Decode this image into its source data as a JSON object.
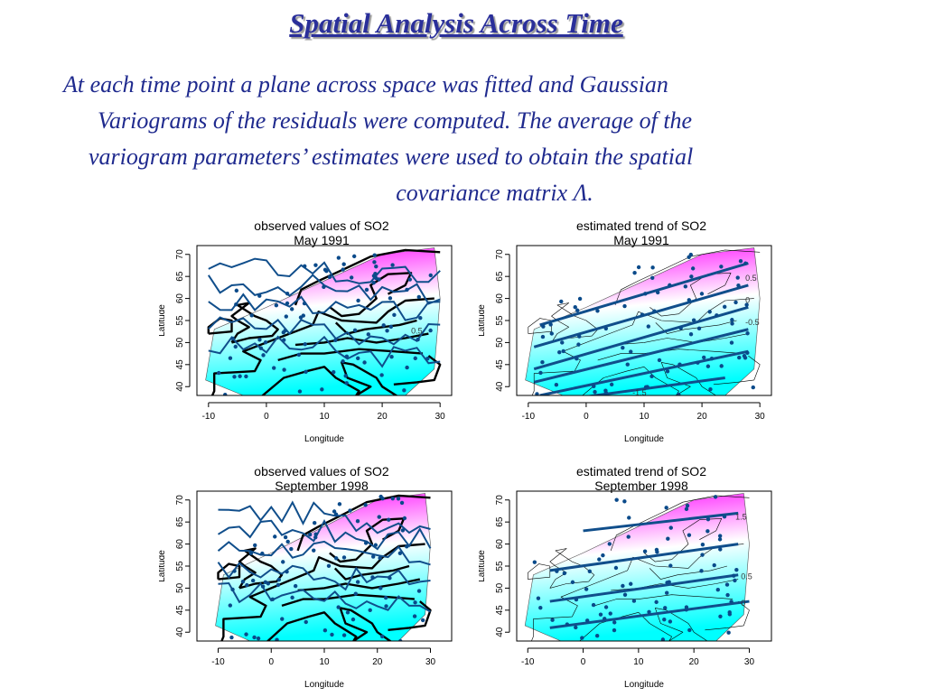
{
  "slide": {
    "title": "Spatial Analysis Across Time",
    "text_lines": [
      "At each time point a plane across space was fitted and Gaussian",
      "Variograms of the residuals were computed. The average of the",
      "variogram parameters’ estimates were used to obtain the spatial",
      "covariance matrix Λ."
    ]
  },
  "colors": {
    "high": "#ff00ff",
    "low": "#00ffff",
    "contour": "#104e8b",
    "station": "#0a4a8a"
  },
  "chart_data": [
    {
      "type": "heatmap",
      "title_line1": "observed values of SO2",
      "title_line2": "May 1991",
      "xlabel": "Longitude",
      "ylabel": "Latitude",
      "xlim": [
        -12,
        32
      ],
      "ylim": [
        38,
        72
      ],
      "xticks": [
        -10,
        0,
        10,
        20,
        30
      ],
      "yticks": [
        40,
        45,
        50,
        55,
        60,
        65,
        70
      ],
      "map_outline": "bold",
      "contour_labels": [
        {
          "lon": 25,
          "lat": 52,
          "text": "0.5"
        }
      ]
    },
    {
      "type": "heatmap",
      "title_line1": "estimated trend of SO2",
      "title_line2": "May 1991",
      "xlabel": "Longitude",
      "ylabel": "Latitude",
      "xlim": [
        -12,
        32
      ],
      "ylim": [
        38,
        72
      ],
      "xticks": [
        -10,
        0,
        10,
        20,
        30
      ],
      "yticks": [
        40,
        45,
        50,
        55,
        60,
        65,
        70
      ],
      "map_outline": "thin",
      "trend_lines": [
        {
          "from": [
            -8,
            54
          ],
          "to": [
            28,
            68
          ]
        },
        {
          "from": [
            -9,
            49
          ],
          "to": [
            28,
            63
          ]
        },
        {
          "from": [
            -9,
            44
          ],
          "to": [
            28,
            58
          ]
        },
        {
          "from": [
            -9,
            41
          ],
          "to": [
            28,
            53
          ]
        },
        {
          "from": [
            -8,
            38
          ],
          "to": [
            28,
            48
          ]
        },
        {
          "from": [
            -4,
            37
          ],
          "to": [
            24,
            42
          ]
        }
      ],
      "contour_labels": [
        {
          "lon": 27.5,
          "lat": 64,
          "text": "0.5"
        },
        {
          "lon": 27.5,
          "lat": 59,
          "text": "0"
        },
        {
          "lon": 27.5,
          "lat": 54,
          "text": "-0.5"
        },
        {
          "lon": 8,
          "lat": 38,
          "text": "-1.5"
        }
      ]
    },
    {
      "type": "heatmap",
      "title_line1": "observed values of SO2",
      "title_line2": "September 1998",
      "xlabel": "Longitude",
      "ylabel": "Latitude",
      "xlim": [
        -14,
        34
      ],
      "ylim": [
        38,
        72
      ],
      "xticks": [
        -10,
        0,
        10,
        20,
        30
      ],
      "yticks": [
        40,
        45,
        50,
        55,
        60,
        65,
        70
      ],
      "map_outline": "bold",
      "contour_labels": []
    },
    {
      "type": "heatmap",
      "title_line1": "estimated trend of SO2",
      "title_line2": "September 1998",
      "xlabel": "Longitude",
      "ylabel": "Latitude",
      "xlim": [
        -12,
        34
      ],
      "ylim": [
        38,
        72
      ],
      "xticks": [
        -10,
        0,
        10,
        20,
        30
      ],
      "yticks": [
        40,
        45,
        50,
        55,
        60,
        65,
        70
      ],
      "map_outline": "thin",
      "trend_lines": [
        {
          "from": [
            0,
            63
          ],
          "to": [
            28,
            67
          ]
        },
        {
          "from": [
            -6,
            54
          ],
          "to": [
            28,
            60
          ]
        },
        {
          "from": [
            -6,
            47
          ],
          "to": [
            28,
            53
          ]
        },
        {
          "from": [
            -6,
            41
          ],
          "to": [
            30,
            47
          ]
        }
      ],
      "contour_labels": [
        {
          "lon": 27.5,
          "lat": 65.5,
          "text": "1.5"
        },
        {
          "lon": 28.5,
          "lat": 52,
          "text": "0.5"
        },
        {
          "lon": 28.5,
          "lat": 46,
          "text": "0"
        }
      ]
    }
  ]
}
